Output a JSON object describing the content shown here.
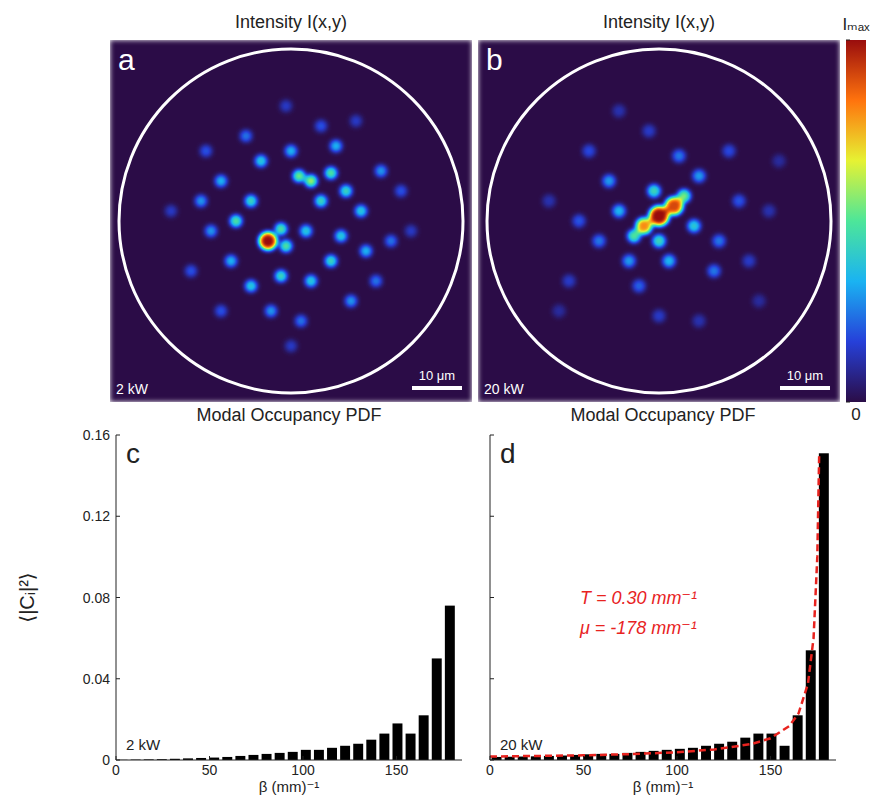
{
  "chart_data": [
    {
      "type": "image",
      "panel": "a",
      "title": "Intensity I(x,y)",
      "annotations": [
        "2 kW"
      ],
      "xlim": [
        -36.2,
        36.2
      ],
      "ylim": [
        -36.2,
        36.2
      ],
      "core_radius": 34.4,
      "scale_bar": {
        "value": 10,
        "label": "10 μm"
      },
      "spots": {
        "x": [
          -4.6,
          -2.0,
          4.0,
          1.6,
          8.0,
          11.0,
          6.0,
          -8.0,
          -11.0,
          -14.0,
          -6.0,
          0,
          9.0,
          14.0,
          15.0,
          8.0,
          4.0,
          -2.0,
          -8.0,
          -12.0,
          -16.0,
          -18.0,
          18.0,
          20.0,
          12.0,
          -4.0,
          2.0,
          -14.0,
          -20.0,
          22.0,
          -9.0,
          6.0,
          17.0,
          -24.0,
          24.0,
          0,
          -1.0,
          13.0,
          -17.0,
          10.0,
          -1.0,
          3.0
        ],
        "y": [
          -4.0,
          -1.6,
          8.0,
          9.0,
          9.6,
          6.0,
          4.0,
          4.0,
          0,
          8.0,
          12.0,
          14.0,
          15.0,
          2.0,
          -6.0,
          -8.0,
          -12.0,
          -11.0,
          -13.0,
          -8.0,
          -2.0,
          4.0,
          10.0,
          -4.0,
          -16.0,
          -18.0,
          -20.0,
          -18.0,
          -10.0,
          6.0,
          17.0,
          19.0,
          -12.0,
          2.0,
          -2.0,
          -25.0,
          23.0,
          20.0,
          14.0,
          -3.0,
          -5.0,
          -2.0
        ],
        "size": [
          1.8,
          1.2,
          1.2,
          1.2,
          1.2,
          1.2,
          1.2,
          1.2,
          1.2,
          1.2,
          1.2,
          1.2,
          1.2,
          1.2,
          1.2,
          1.2,
          1.2,
          1.2,
          1.2,
          1.2,
          1.2,
          1.2,
          1.2,
          1.2,
          1.2,
          1.2,
          1.2,
          1.2,
          1.2,
          1.2,
          1.2,
          1.2,
          1.2,
          1.2,
          1.2,
          1.2,
          1.2,
          1.2,
          1.2,
          1.2,
          1.2,
          1.2
        ],
        "values": [
          1.0,
          0.5,
          0.6,
          0.55,
          0.5,
          0.45,
          0.45,
          0.45,
          0.5,
          0.35,
          0.4,
          0.35,
          0.35,
          0.4,
          0.35,
          0.45,
          0.4,
          0.45,
          0.4,
          0.35,
          0.3,
          0.3,
          0.3,
          0.25,
          0.3,
          0.3,
          0.25,
          0.2,
          0.2,
          0.2,
          0.25,
          0.2,
          0.25,
          0.15,
          0.15,
          0.15,
          0.15,
          0.15,
          0.2,
          0.4,
          0.5,
          0.4
        ]
      }
    },
    {
      "type": "image",
      "panel": "b",
      "title": "Intensity I(x,y)",
      "annotations": [
        "20 kW"
      ],
      "xlim": [
        -36.2,
        36.2
      ],
      "ylim": [
        -36.2,
        36.2
      ],
      "core_radius": 34.4,
      "scale_bar": {
        "value": 10,
        "label": "10 μm"
      },
      "colorbar": {
        "range": [
          0,
          1
        ],
        "ticks": [
          {
            "value": 0,
            "label": "0"
          },
          {
            "value": 1,
            "label": "Iₘₐₓ"
          }
        ]
      },
      "spots": {
        "x": [
          0,
          3.0,
          -3.0,
          5.0,
          -5.0,
          0,
          -1.0,
          7.0,
          -8.0,
          2.0,
          -6.0,
          8.0,
          -10.0,
          12.0,
          11.0,
          -12.0,
          -4.0,
          4.0,
          16.0,
          -16.0,
          14.0,
          -14.0,
          18.0,
          -18.0,
          0,
          -2.0,
          22.0,
          -22.0,
          8.0,
          -8.0,
          20.0,
          -20.0,
          24.0
        ],
        "y": [
          1.0,
          3.0,
          -1.0,
          5.0,
          -3.0,
          -4.0,
          6.0,
          -1.0,
          2.0,
          -8.0,
          -8.0,
          9.0,
          8.0,
          -4.0,
          -10.0,
          -4.0,
          -13.0,
          13.0,
          4.0,
          0,
          14.0,
          14.0,
          -8.0,
          -12.0,
          -19.0,
          18.0,
          2.0,
          4.0,
          -20.0,
          22.0,
          -16.0,
          -18.0,
          12.0
        ],
        "size": [
          2.0,
          1.8,
          1.6,
          1.3,
          1.3,
          1.3,
          1.3,
          1.3,
          1.3,
          1.3,
          1.3,
          1.3,
          1.3,
          1.3,
          1.3,
          1.3,
          1.3,
          1.3,
          1.3,
          1.3,
          1.3,
          1.3,
          1.3,
          1.3,
          1.3,
          1.3,
          1.3,
          1.3,
          1.3,
          1.3,
          1.3,
          1.3,
          1.3
        ],
        "values": [
          1.0,
          0.9,
          0.8,
          0.55,
          0.5,
          0.45,
          0.45,
          0.4,
          0.35,
          0.35,
          0.3,
          0.3,
          0.3,
          0.25,
          0.25,
          0.25,
          0.22,
          0.25,
          0.2,
          0.2,
          0.18,
          0.18,
          0.15,
          0.15,
          0.15,
          0.15,
          0.12,
          0.12,
          0.12,
          0.12,
          0.1,
          0.1,
          0.1
        ]
      }
    },
    {
      "type": "histogram",
      "panel": "c",
      "title": "Modal Occupancy PDF",
      "x_label": "β (mm)⁻¹",
      "y_label": "⟨|Cᵢ|²⟩",
      "annotations": [
        "2 kW"
      ],
      "color": "#000000",
      "bins": [
        0,
        7,
        14,
        21,
        28,
        35,
        42,
        49,
        56,
        63,
        70,
        77,
        84,
        91,
        98,
        105,
        112,
        119,
        126,
        133,
        140,
        147,
        154,
        161,
        168,
        175,
        182
      ],
      "values": [
        0.0001,
        0.0002,
        0.0003,
        0.0004,
        0.0006,
        0.0008,
        0.001,
        0.0012,
        0.0015,
        0.002,
        0.0025,
        0.003,
        0.0035,
        0.004,
        0.005,
        0.005,
        0.006,
        0.007,
        0.008,
        0.01,
        0.013,
        0.018,
        0.013,
        0.022,
        0.05,
        0.076
      ],
      "xlim": [
        0,
        185
      ],
      "ylim": [
        0,
        0.16
      ],
      "xticks": [
        0,
        50,
        100,
        150
      ],
      "yticks": [
        0,
        0.04,
        0.08,
        0.12,
        0.16
      ]
    },
    {
      "type": "histogram",
      "panel": "d",
      "title": "Modal Occupancy PDF",
      "x_label": "β (mm)⁻¹",
      "annotations": [
        "20 kW"
      ],
      "color": "#000000",
      "tick_labels": "x",
      "bins": [
        0,
        7,
        14,
        21,
        28,
        35,
        42,
        49,
        56,
        63,
        70,
        77,
        84,
        91,
        98,
        105,
        112,
        119,
        126,
        133,
        140,
        147,
        154,
        161,
        168,
        175,
        182
      ],
      "values": [
        0.0015,
        0.0016,
        0.0017,
        0.0018,
        0.002,
        0.0022,
        0.0025,
        0.0028,
        0.003,
        0.003,
        0.0035,
        0.004,
        0.0045,
        0.005,
        0.0055,
        0.006,
        0.007,
        0.008,
        0.009,
        0.011,
        0.013,
        0.013,
        0.007,
        0.022,
        0.054,
        0.151
      ],
      "fit": {
        "type": "line",
        "line_style": "dashed",
        "color": "#e8231f",
        "labels": [
          "T = 0.30 mm⁻¹",
          "μ = -178 mm⁻¹"
        ],
        "x": [
          0,
          25,
          50,
          75,
          100,
          120,
          140,
          150,
          160,
          165,
          170,
          173,
          175,
          176
        ],
        "values": [
          0.0017,
          0.002,
          0.0023,
          0.0029,
          0.0038,
          0.0052,
          0.0079,
          0.0107,
          0.0167,
          0.023,
          0.0375,
          0.06,
          0.1,
          0.15
        ]
      },
      "xlim": [
        0,
        185
      ],
      "ylim": [
        0,
        0.16
      ],
      "xticks": [
        0,
        50,
        100,
        150
      ],
      "yticks": [
        0,
        0.04,
        0.08,
        0.12,
        0.16
      ]
    }
  ]
}
